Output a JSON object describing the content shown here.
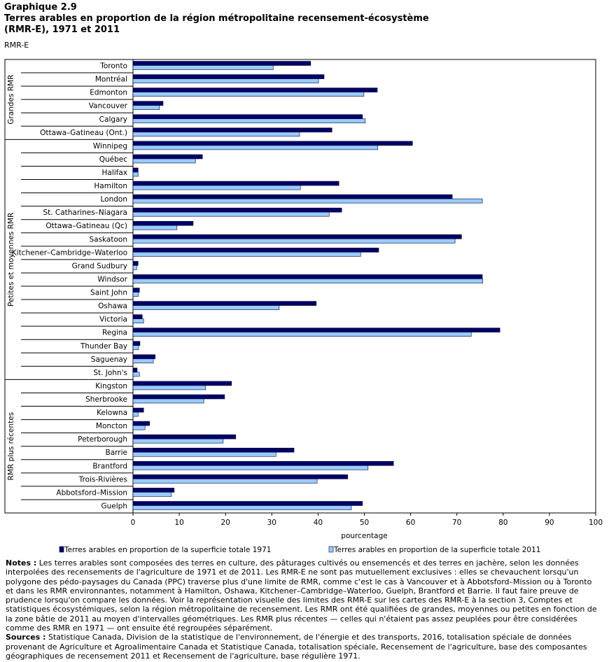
{
  "chart_data": {
    "type": "bar",
    "orientation": "horizontal",
    "title": "Graphique  2.9",
    "subtitle": "Terres arables en proportion de la région métropolitaine recensement-écosystème (RMR-E), 1971 et 2011",
    "y_label": "RMR-E",
    "x_label": "pourcentage",
    "groups": [
      {
        "label": "Grandes RMR",
        "categories": [
          "Toronto",
          "Montréal",
          "Edmonton",
          "Vancouver",
          "Calgary",
          "Ottawa–Gatineau (Ont.)"
        ]
      },
      {
        "label": "Petites et moyennes RMR",
        "categories": [
          "Winnipeg",
          "Québec",
          "Halifax",
          "Hamilton",
          "London",
          "St. Catharines–Niagara",
          "Ottawa–Gatineau (Qc)",
          "Saskatoon",
          "Kitchener–Cambridge–Waterloo",
          "Grand Sudbury",
          "Windsor",
          "Saint John",
          "Oshawa",
          "Victoria",
          "Regina",
          "Thunder Bay",
          "Saguenay",
          "St. John's"
        ]
      },
      {
        "label": "RMR plus récentes",
        "categories": [
          "Kingston",
          "Sherbrooke",
          "Kelowna",
          "Moncton",
          "Peterborough",
          "Barrie",
          "Brantford",
          "Trois-Rivières",
          "Abbotsford–Mission",
          "Guelph"
        ]
      }
    ],
    "series": [
      {
        "name": "Terres arables en proportion de la superficie totale 1971",
        "color": "#000066",
        "values": [
          38.4,
          41.3,
          52.8,
          6.5,
          49.6,
          43.0,
          60.4,
          15.0,
          1.1,
          44.5,
          69.0,
          45.1,
          13.0,
          71.0,
          53.1,
          1.1,
          75.5,
          1.4,
          39.6,
          2.0,
          79.3,
          1.5,
          4.8,
          0.9,
          21.3,
          19.8,
          2.3,
          3.6,
          22.2,
          34.8,
          56.3,
          46.4,
          8.9,
          49.6
        ]
      },
      {
        "name": "Terres arables en proportion de la superficie totale 2011",
        "color": "#99ccff",
        "values": [
          30.3,
          40.1,
          49.9,
          5.7,
          50.2,
          36.0,
          52.9,
          13.5,
          1.1,
          36.2,
          75.5,
          42.4,
          9.5,
          69.6,
          49.2,
          0.8,
          75.6,
          1.2,
          31.6,
          2.3,
          73.1,
          1.2,
          4.4,
          1.4,
          15.7,
          15.3,
          1.1,
          2.6,
          19.5,
          30.9,
          50.8,
          39.8,
          8.3,
          47.2
        ]
      }
    ],
    "xlim": [
      0,
      100
    ],
    "xticks": [
      0,
      10,
      20,
      30,
      40,
      50,
      60,
      70,
      80,
      90,
      100
    ],
    "notes": {
      "label": "Notes :",
      "text": "Les terres arables sont composées des terres en culture, des pâturages cultivés ou ensemencés et des terres en jachère, selon les données interpolées des recensements de l'agriculture de 1971 et de 2011. Les RMR-E ne sont pas mutuellement exclusives : elles se chevauchent lorsqu'un polygone des pédo-paysages du Canada (PPC) traverse plus d'une limite de RMR, comme c'est le cas à Vancouver et à Abbotsford–Mission ou à Toronto et dans les RMR environnantes, notamment à Hamilton, Oshawa, Kitchener–Cambridge–Waterloo, Guelph, Brantford et Barrie. Il faut faire preuve de prudence lorsqu'on compare les données. Voir la représentation visuelle des limites des RMR-E sur les cartes des RMR-E à la section 3, Comptes et statistiques écosystémiques, selon la région métropolitaine de recensement. Les RMR ont été qualifiées de grandes, moyennes ou petites en fonction de la zone bâtie de 2011 au moyen d'intervalles géométriques. Les RMR plus récentes — celles qui n'étaient pas assez peuplées pour être considérées comme des RMR en 1971 — ont ensuite été regroupées séparément."
    },
    "sources": {
      "label": "Sources :",
      "text": "Statistique Canada, Division de la statistique de l'environnement, de l'énergie et des transports, 2016, totalisation spéciale de données provenant de Agriculture et Agroalimentaire Canada et Statistique Canada, totalisation spéciale, Recensement de l'agriculture, base des composantes géographiques de recensement 2011 et Recensement de l'agriculture, base régulière 1971."
    }
  }
}
